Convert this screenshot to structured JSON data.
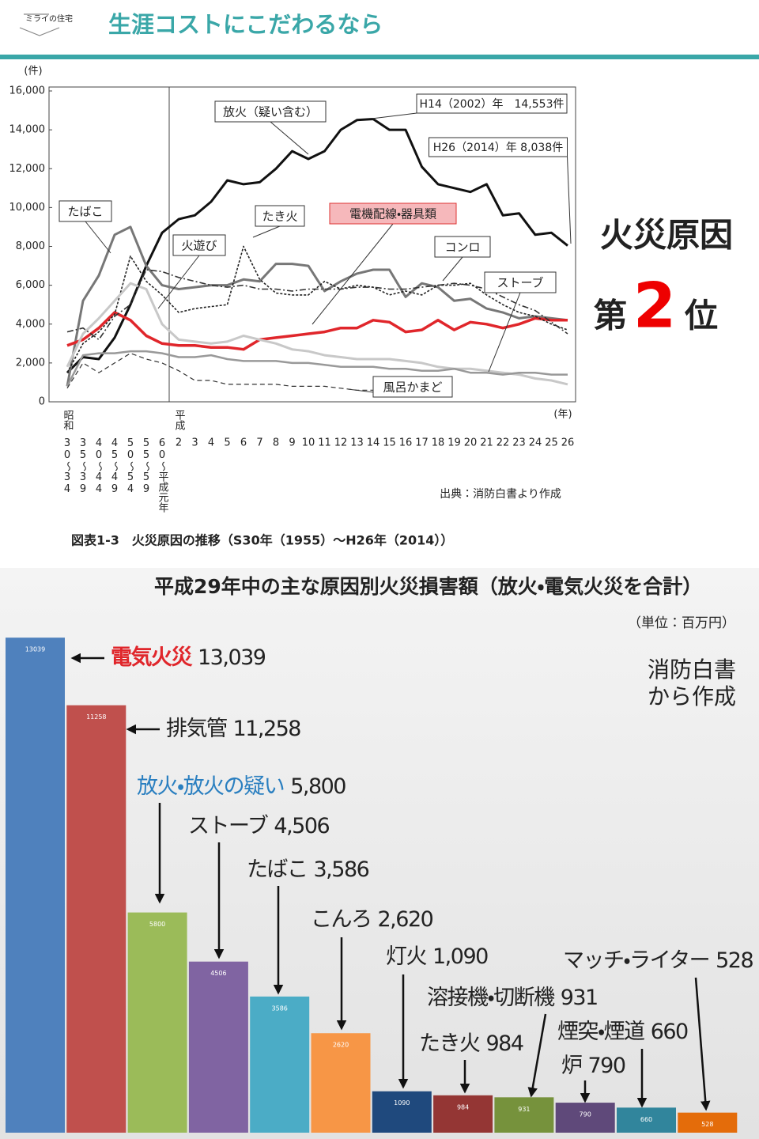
{
  "header": {
    "logo": "ミライの住宅",
    "title": "生涯コストにこだわるなら"
  },
  "side_note": {
    "heading": "火災原因",
    "prefix": "第",
    "rank": 2,
    "suffix": "位"
  },
  "chart_data": [
    {
      "type": "line",
      "y_unit": "(件)",
      "x_unit": "(年)",
      "eras": [
        "昭和",
        "平成"
      ],
      "categories": [
        "30〜34",
        "35〜39",
        "40〜44",
        "45〜49",
        "50〜54",
        "55〜59",
        "60〜平成元年",
        "2",
        "3",
        "4",
        "5",
        "6",
        "7",
        "8",
        "9",
        "10",
        "11",
        "12",
        "13",
        "14",
        "15",
        "16",
        "17",
        "18",
        "19",
        "20",
        "21",
        "22",
        "23",
        "24",
        "25",
        "26"
      ],
      "ylim": [
        0,
        16000
      ],
      "yticks": [
        0,
        {
          "value": 2000,
          "label": "2,000"
        },
        {
          "value": 4000,
          "label": "4,000"
        },
        {
          "value": 6000,
          "label": "6,000"
        },
        {
          "value": 8000,
          "label": "8,000"
        },
        {
          "value": 10000,
          "label": "10,000"
        },
        {
          "value": 12000,
          "label": "12,000"
        },
        {
          "value": 14000,
          "label": "14,000"
        },
        {
          "value": 16000,
          "label": "16,000"
        }
      ],
      "series": [
        {
          "name": "放火（疑い含む）",
          "color": "#111111",
          "width": 3,
          "dash": "none",
          "values": [
            1500,
            2300,
            2200,
            3300,
            5000,
            7000,
            8700,
            9400,
            9600,
            10300,
            11400,
            11200,
            11300,
            12000,
            12900,
            12500,
            12900,
            14000,
            14500,
            14553,
            14000,
            14000,
            12100,
            11200,
            11000,
            10800,
            11200,
            9600,
            9700,
            8600,
            8700,
            8038
          ]
        },
        {
          "name": "たばこ",
          "color": "#777777",
          "width": 3,
          "dash": "none",
          "values": [
            800,
            5200,
            6500,
            8600,
            9000,
            7000,
            6000,
            5800,
            5900,
            6000,
            6000,
            6300,
            6200,
            7100,
            7100,
            7000,
            5700,
            6200,
            6600,
            6800,
            6800,
            5400,
            6100,
            5900,
            5200,
            5300,
            4800,
            4600,
            4300,
            4400,
            4300,
            4200
          ]
        },
        {
          "name": "電機配線・器具類",
          "color": "#e0262b",
          "width": 3.5,
          "dash": "none",
          "values": [
            2900,
            3200,
            3800,
            4600,
            4200,
            3400,
            3000,
            2900,
            2900,
            2800,
            2800,
            2700,
            3200,
            3300,
            3400,
            3500,
            3600,
            3800,
            3800,
            4200,
            4100,
            3600,
            3700,
            4200,
            3700,
            4100,
            4000,
            3800,
            4000,
            4300,
            4200,
            4200
          ]
        },
        {
          "name": "たき火",
          "color": "#222222",
          "width": 1.6,
          "dash": "3 2",
          "values": [
            1500,
            3000,
            3600,
            4500,
            7500,
            6200,
            5500,
            4600,
            4800,
            4900,
            5000,
            8000,
            6300,
            5600,
            5500,
            5500,
            6200,
            5800,
            6000,
            5900,
            5500,
            5700,
            5500,
            6000,
            6000,
            6100,
            5500,
            5000,
            4600,
            4400,
            4000,
            3700
          ]
        },
        {
          "name": "火遊び",
          "color": "#c8c8c8",
          "width": 3,
          "dash": "none",
          "values": [
            1800,
            3500,
            4300,
            5200,
            6100,
            5800,
            4000,
            3200,
            3100,
            3000,
            3100,
            3400,
            3200,
            3000,
            2700,
            2600,
            2400,
            2300,
            2200,
            2200,
            2200,
            2100,
            2000,
            1800,
            1700,
            1700,
            1600,
            1500,
            1400,
            1200,
            1100,
            900
          ]
        },
        {
          "name": "コンロ",
          "color": "#333333",
          "width": 1.6,
          "dash": "8 3 2 3",
          "values": [
            3600,
            3800,
            3200,
            4400,
            5000,
            6800,
            6700,
            6400,
            6200,
            6000,
            5900,
            6000,
            5800,
            5800,
            5700,
            5800,
            5800,
            5800,
            5900,
            5900,
            5800,
            5800,
            5900,
            6000,
            6100,
            6000,
            5800,
            5400,
            5000,
            4700,
            4100,
            3500
          ]
        },
        {
          "name": "ストーブ",
          "color": "#999999",
          "width": 2.5,
          "dash": "none",
          "values": [
            800,
            2400,
            2500,
            2500,
            2600,
            2600,
            2500,
            2300,
            2300,
            2400,
            2200,
            2100,
            2100,
            2100,
            2000,
            2000,
            1900,
            1800,
            1800,
            1800,
            1700,
            1700,
            1600,
            1600,
            1700,
            1500,
            1500,
            1400,
            1500,
            1500,
            1400,
            1400
          ]
        },
        {
          "name": "風呂かまど",
          "color": "#333333",
          "width": 1.2,
          "dash": "6 4",
          "values": [
            700,
            2000,
            1500,
            2000,
            2500,
            2200,
            2000,
            1600,
            1100,
            1100,
            900,
            900,
            900,
            900,
            800,
            800,
            800,
            700,
            600,
            600,
            600,
            600,
            500,
            500,
            null,
            null,
            null,
            null,
            null,
            null,
            null,
            null
          ]
        }
      ],
      "annotations": [
        "H14（2002）年　14,553件",
        "H26（2014）年  8,038件"
      ],
      "source": "出典：消防白書より作成",
      "caption": "図表1-3　火災原因の推移（S30年（1955）〜H26年（2014））"
    },
    {
      "type": "bar",
      "title": "平成29年中の主な原因別火災損害額（放火・電気火災を合計）",
      "unit": "（単位：百万円）",
      "note": [
        "消防白書",
        "から作成"
      ],
      "ylim": [
        0,
        15000
      ],
      "categories": [
        "電気火災",
        "排気管",
        "放火・放火の疑い",
        "ストーブ",
        "たばこ",
        "こんろ",
        "灯火",
        "たき火",
        "溶接機・切断機",
        "炉",
        "煙突・煙道",
        "マッチ・ライター"
      ],
      "values": [
        13039,
        11258,
        5800,
        4506,
        3586,
        2620,
        1090,
        984,
        931,
        790,
        660,
        528
      ],
      "value_labels": [
        "13,039",
        "11,258",
        "5,800",
        "4,506",
        "3,586",
        "2,620",
        "1,090",
        "984",
        "931",
        "790",
        "660",
        "528"
      ],
      "colors": [
        "#4f81bd",
        "#c0504d",
        "#9bbb59",
        "#8064a2",
        "#4bacc6",
        "#f79646",
        "#1f497d",
        "#943634",
        "#76923c",
        "#5f497a",
        "#31859c",
        "#e46c0a"
      ],
      "label_colors": [
        "#e0262b",
        "#222222",
        "#2a7fc0",
        "#222222",
        "#222222",
        "#222222",
        "#222222",
        "#222222",
        "#222222",
        "#222222",
        "#222222",
        "#222222"
      ]
    }
  ]
}
